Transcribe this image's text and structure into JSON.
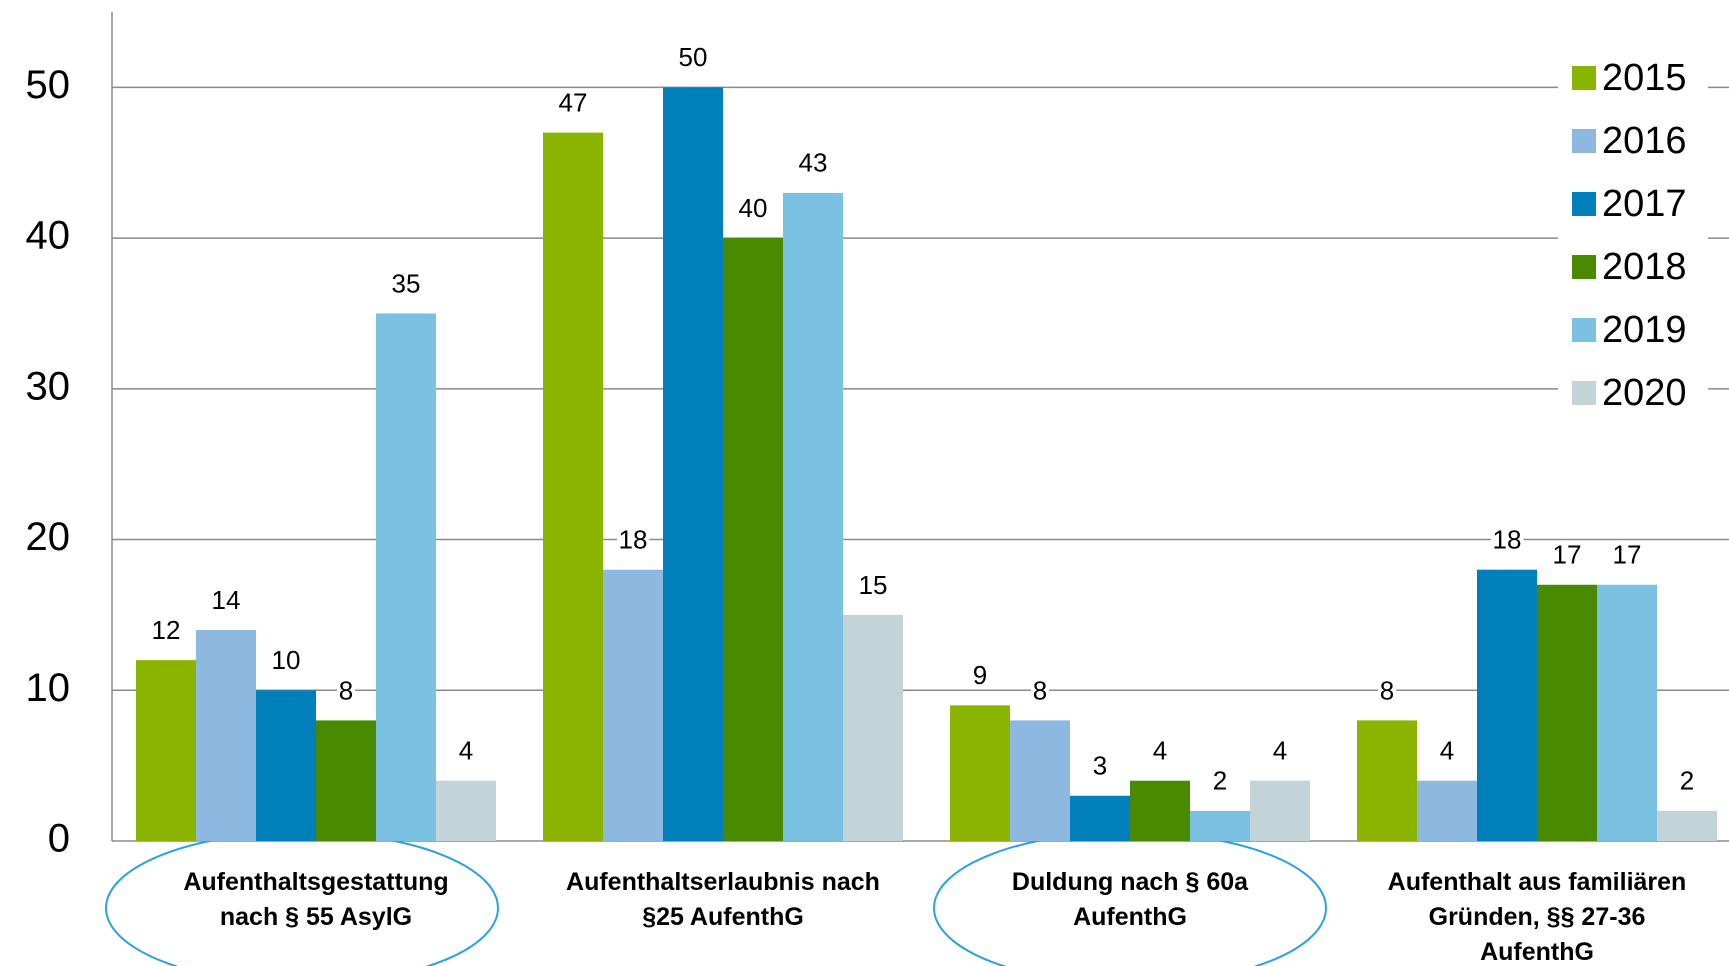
{
  "chart_data": {
    "type": "bar",
    "categories": [
      "Aufenthaltsgestattung\nnach § 55 AsylG",
      "Aufenthaltserlaubnis nach\n§25 AufenthG",
      "Duldung nach § 60a\nAufenthG",
      "Aufenthalt aus familiären\nGründen, §§ 27-36\nAufenthG"
    ],
    "series": [
      {
        "name": "2015",
        "color": "#8ab400",
        "values": [
          12,
          47,
          9,
          8
        ]
      },
      {
        "name": "2016",
        "color": "#8db8e0",
        "values": [
          14,
          18,
          8,
          4
        ]
      },
      {
        "name": "2017",
        "color": "#0080bb",
        "values": [
          10,
          50,
          3,
          18
        ]
      },
      {
        "name": "2018",
        "color": "#4a8a00",
        "values": [
          8,
          40,
          4,
          17
        ]
      },
      {
        "name": "2019",
        "color": "#7ac1e2",
        "values": [
          35,
          43,
          2,
          17
        ]
      },
      {
        "name": "2020",
        "color": "#c2d4d8",
        "values": [
          4,
          15,
          4,
          2
        ]
      }
    ],
    "ylim": [
      0,
      55
    ],
    "yticks": [
      0,
      10,
      20,
      30,
      40,
      50
    ],
    "grid": true,
    "legend": "right"
  }
}
